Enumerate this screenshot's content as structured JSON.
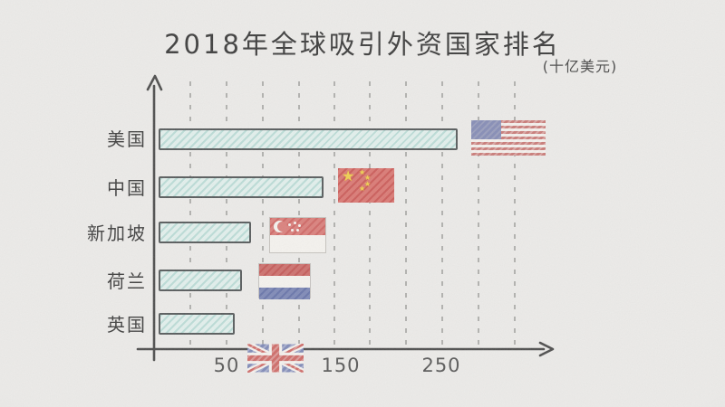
{
  "title": "2018年全球吸引外资国家排名",
  "unit_label": "(十亿美元)",
  "chart_data": {
    "type": "bar",
    "orientation": "horizontal",
    "title": "2018年全球吸引外资国家排名",
    "subtitle_unit": "(十亿美元)",
    "categories": [
      "美国",
      "中国",
      "新加坡",
      "荷兰",
      "英国"
    ],
    "values": [
      252,
      139,
      78,
      70,
      64
    ],
    "x_ticks": [
      "50",
      "150",
      "250"
    ],
    "xlim": [
      0,
      300
    ],
    "xlabel": "",
    "ylabel": "",
    "grid": "vertical-dashed",
    "legend": "none",
    "style": "hand-drawn sketch on paper",
    "bar_fill_color": "#e3f1ee",
    "bar_border_color": "#565a5b",
    "flag_icons": [
      "usa-flag",
      "china-flag",
      "singapore-flag",
      "netherlands-flag",
      "uk-flag"
    ]
  }
}
